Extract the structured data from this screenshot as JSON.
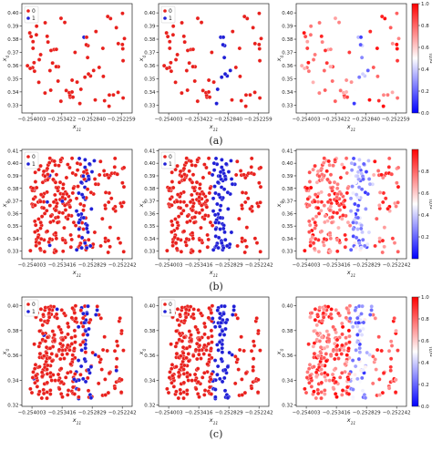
{
  "figure": {
    "panels": [
      {
        "caption": "(a)",
        "n_points": 70,
        "blue_fraction_class": 0.16,
        "x_tick_labels": [
          "−0.254003",
          "−0.253422",
          "−0.252840",
          "−0.252259"
        ],
        "x_ticks": [
          -0.254003,
          -0.253422,
          -0.25284,
          -0.252259
        ],
        "xlim": [
          -0.2542,
          -0.25205
        ],
        "y_tick_labels": [
          "0.33",
          "0.34",
          "0.35",
          "0.36",
          "0.37",
          "0.38",
          "0.39",
          "0.40"
        ],
        "ylim": [
          0.324,
          0.407
        ],
        "colorbar_ticks": [
          "0.0",
          "0.2",
          "0.4",
          "0.6",
          "0.8",
          "1.0"
        ]
      },
      {
        "caption": "(b)",
        "n_points": 280,
        "blue_fraction_class": 0.25,
        "x_tick_labels": [
          "−0.254003",
          "−0.253416",
          "−0.252829",
          "−0.252242"
        ],
        "x_ticks": [
          -0.254003,
          -0.253416,
          -0.252829,
          -0.252242
        ],
        "xlim": [
          -0.2542,
          -0.25205
        ],
        "y_tick_labels": [
          "0.33",
          "0.34",
          "0.35",
          "0.36",
          "0.37",
          "0.38",
          "0.39",
          "0.40",
          "0.41"
        ],
        "ylim": [
          0.324,
          0.411
        ],
        "colorbar_ticks": [
          "0.2",
          "0.4",
          "0.6",
          "0.8"
        ]
      },
      {
        "caption": "(c)",
        "n_points": 300,
        "blue_fraction_class": 0.25,
        "x_tick_labels": [
          "−0.254003",
          "−0.253416",
          "−0.252829",
          "−0.252242"
        ],
        "x_ticks": [
          -0.254003,
          -0.253416,
          -0.252829,
          -0.252242
        ],
        "xlim": [
          -0.2542,
          -0.25205
        ],
        "y_tick_labels": [
          "0.32",
          "0.34",
          "0.36",
          "0.38",
          "0.40"
        ],
        "ylim": [
          0.319,
          0.407
        ],
        "colorbar_ticks": [
          "0.0",
          "0.2",
          "0.4",
          "0.6",
          "0.8",
          "1.0"
        ]
      }
    ],
    "subplots": [
      {
        "legend_label": "0",
        "legend_label_2": "1",
        "mode": "pred"
      },
      {
        "legend_label": "0",
        "legend_label_2": "1",
        "mode": "true"
      },
      {
        "colorbar_label": "p(0)",
        "mode": "prob"
      }
    ],
    "x_axis_label": "x",
    "x_axis_sub": "11",
    "y_axis_label": "x",
    "y_axis_sub": "0",
    "colors": {
      "red": "#e8201c",
      "blue": "#1f1fd6",
      "marker_edge": "#ffffff"
    }
  },
  "chart_data": [
    {
      "type": "scatter",
      "note_caption": "(a)",
      "xlabel": "x11",
      "ylabel": "x0",
      "xlim": [
        -0.2542,
        -0.25205
      ],
      "ylim": [
        0.324,
        0.407
      ],
      "series": [
        {
          "name": "0"
        },
        {
          "name": "1"
        }
      ]
    },
    {
      "type": "scatter",
      "note_caption": "(b)",
      "xlabel": "x11",
      "ylabel": "x0",
      "xlim": [
        -0.2542,
        -0.25205
      ],
      "ylim": [
        0.324,
        0.411
      ],
      "series": [
        {
          "name": "0"
        },
        {
          "name": "1"
        }
      ]
    },
    {
      "type": "scatter",
      "note_caption": "(c)",
      "xlabel": "x11",
      "ylabel": "x0",
      "xlim": [
        -0.2542,
        -0.25205
      ],
      "ylim": [
        0.319,
        0.407
      ],
      "series": [
        {
          "name": "0"
        },
        {
          "name": "1"
        }
      ]
    }
  ]
}
